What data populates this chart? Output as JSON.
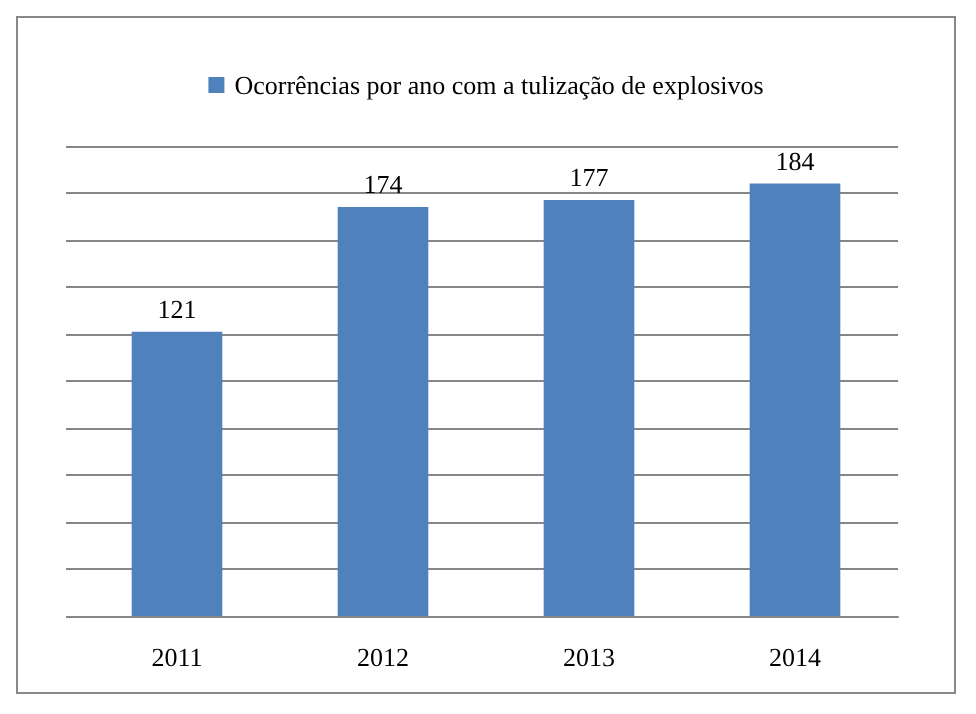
{
  "chart_data": {
    "type": "bar",
    "categories": [
      "2011",
      "2012",
      "2013",
      "2014"
    ],
    "series": [
      {
        "name": "Ocorrências por ano com a tulização de explosivos",
        "color": "#4f81bd",
        "values": [
          121,
          174,
          177,
          184
        ]
      }
    ],
    "ylim": [
      0,
      200
    ],
    "yticks": [
      {
        "value": 0,
        "label": null
      },
      {
        "value": 20,
        "label": null
      },
      {
        "value": 40,
        "label": null
      },
      {
        "value": 60,
        "label": null
      },
      {
        "value": 80,
        "label": null
      },
      {
        "value": 100,
        "label": null
      },
      {
        "value": 120,
        "label": null
      },
      {
        "value": 140,
        "label": null
      },
      {
        "value": 160,
        "label": null
      },
      {
        "value": 180,
        "label": null
      },
      {
        "value": 200,
        "label": null
      }
    ],
    "tick_labels": "x",
    "grid": "y",
    "legend": "top",
    "data_labels": true
  }
}
